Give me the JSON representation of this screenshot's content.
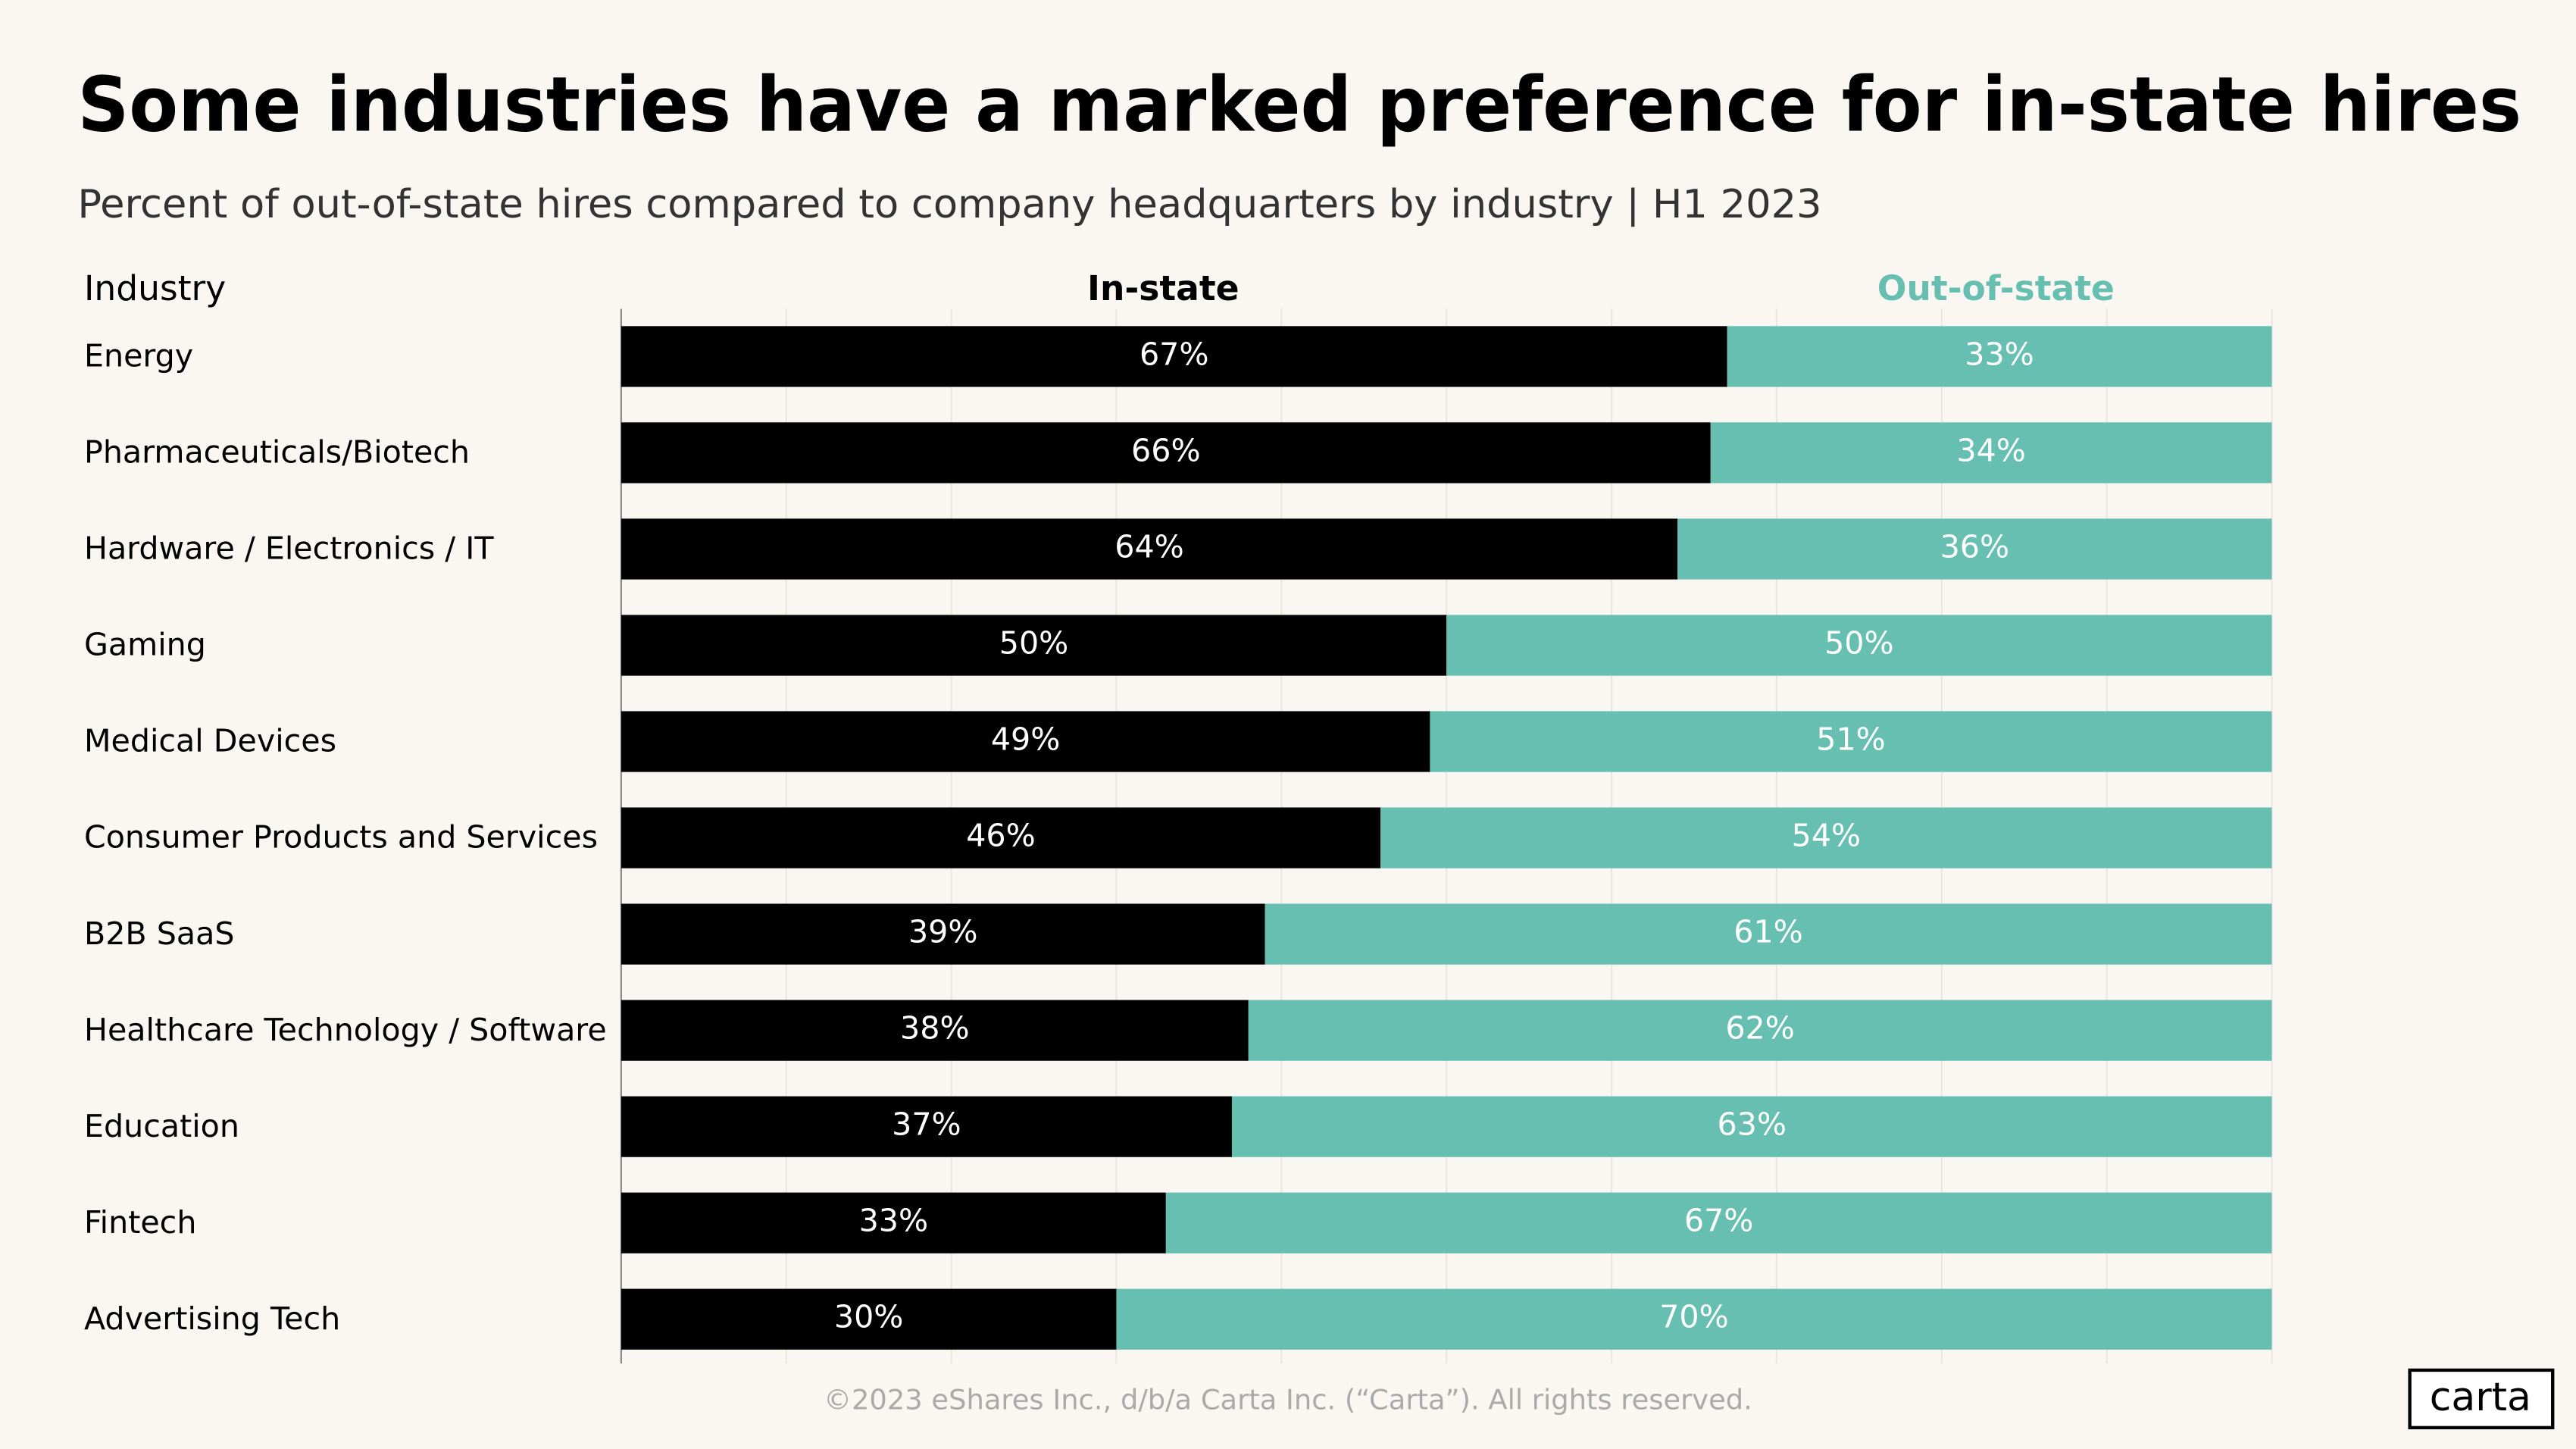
{
  "chart_data": {
    "type": "stacked-bar-horizontal",
    "title": "Some industries have a marked preference for in-state hires",
    "subtitle": "Percent of out-of-state hires compared to company headquarters by industry |  H1 2023",
    "y_label": "Industry",
    "categories": [
      "Energy",
      "Pharmaceuticals/Biotech",
      "Hardware / Electronics / IT",
      "Gaming",
      "Medical Devices",
      "Consumer Products and Services",
      "B2B SaaS",
      "Healthcare Technology / Software",
      "Education",
      "Fintech",
      "Advertising Tech"
    ],
    "series": [
      {
        "name": "In-state",
        "color": "#000000",
        "values": [
          67,
          66,
          64,
          50,
          49,
          46,
          39,
          38,
          37,
          33,
          30
        ],
        "value_labels": [
          "67%",
          "66%",
          "64%",
          "50%",
          "49%",
          "46%",
          "39%",
          "38%",
          "37%",
          "33%",
          "30%"
        ]
      },
      {
        "name": "Out-of-state",
        "color": "#66bfb0",
        "values": [
          33,
          34,
          36,
          50,
          51,
          54,
          61,
          62,
          63,
          67,
          70
        ],
        "value_labels": [
          "33%",
          "34%",
          "36%",
          "50%",
          "51%",
          "54%",
          "61%",
          "62%",
          "63%",
          "67%",
          "70%"
        ]
      }
    ],
    "xlim": [
      0,
      100
    ],
    "xticks": [
      0,
      10,
      20,
      30,
      40,
      50,
      60,
      70,
      80,
      90,
      100
    ],
    "grid": true,
    "footer": "©2023 eShares Inc., d/b/a Carta Inc. (“Carta”). All rights reserved.",
    "logo": "carta"
  }
}
